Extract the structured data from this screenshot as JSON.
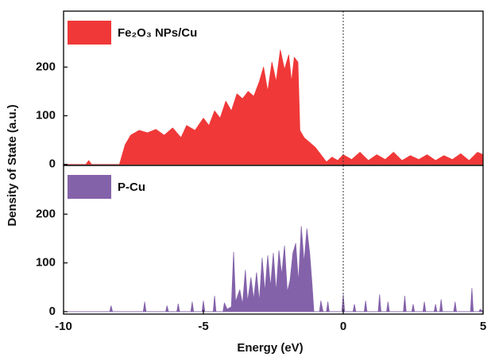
{
  "chart_data": [
    {
      "type": "area",
      "ylabel": "Density of State (a.u.)",
      "xlim": [
        -10,
        5
      ],
      "ylim": [
        -2,
        315
      ],
      "yticks": [
        0,
        100,
        200
      ],
      "vline": 0,
      "x": [
        -10,
        -9.2,
        -9.1,
        -9.0,
        -8.0,
        -7.8,
        -7.6,
        -7.3,
        -7.0,
        -6.7,
        -6.4,
        -6.1,
        -5.8,
        -5.6,
        -5.3,
        -5.0,
        -4.8,
        -4.6,
        -4.4,
        -4.2,
        -4.0,
        -3.8,
        -3.6,
        -3.4,
        -3.2,
        -3.0,
        -2.85,
        -2.7,
        -2.55,
        -2.4,
        -2.25,
        -2.1,
        -1.95,
        -1.85,
        -1.75,
        -1.62,
        -1.55,
        -1.4,
        -1.2,
        -1.0,
        -0.8,
        -0.6,
        -0.4,
        -0.2,
        0,
        0.3,
        0.6,
        0.9,
        1.2,
        1.5,
        1.8,
        2.1,
        2.4,
        2.7,
        3.0,
        3.3,
        3.6,
        3.9,
        4.2,
        4.5,
        4.8,
        5
      ],
      "series": [
        {
          "name": "Fe₂O₃ NPs/Cu",
          "color": "#f03838",
          "values": [
            0,
            0,
            8,
            0,
            0,
            40,
            60,
            70,
            65,
            72,
            60,
            75,
            55,
            80,
            70,
            95,
            80,
            110,
            95,
            130,
            110,
            145,
            135,
            150,
            140,
            170,
            200,
            150,
            210,
            170,
            235,
            195,
            225,
            170,
            220,
            210,
            70,
            55,
            45,
            35,
            20,
            5,
            15,
            8,
            20,
            10,
            25,
            8,
            20,
            10,
            25,
            8,
            18,
            10,
            20,
            8,
            18,
            10,
            22,
            8,
            25,
            20
          ]
        }
      ]
    },
    {
      "type": "area",
      "xlabel": "Energy (eV)",
      "xlim": [
        -10,
        5
      ],
      "xticks": [
        -10,
        -5,
        0,
        5
      ],
      "ylim": [
        -5,
        300
      ],
      "yticks": [
        0,
        100,
        200
      ],
      "vline": 0,
      "x": [
        -10,
        -8.35,
        -8.3,
        -8.25,
        -7.15,
        -7.1,
        -7.05,
        -6.35,
        -6.3,
        -6.25,
        -5.95,
        -5.9,
        -5.85,
        -5.45,
        -5.4,
        -5.35,
        -5.05,
        -5.0,
        -4.95,
        -4.65,
        -4.6,
        -4.55,
        -4.3,
        -4.25,
        -4.15,
        -4.0,
        -3.92,
        -3.85,
        -3.7,
        -3.6,
        -3.5,
        -3.42,
        -3.3,
        -3.2,
        -3.1,
        -3.0,
        -2.9,
        -2.8,
        -2.7,
        -2.6,
        -2.5,
        -2.4,
        -2.3,
        -2.2,
        -2.1,
        -2.0,
        -1.9,
        -1.8,
        -1.7,
        -1.6,
        -1.5,
        -1.4,
        -1.3,
        -1.2,
        -1.12,
        -1.05,
        -0.85,
        -0.8,
        -0.72,
        -0.6,
        -0.55,
        -0.5,
        -0.05,
        0,
        0.05,
        0.35,
        0.4,
        0.45,
        0.75,
        0.8,
        0.85,
        1.25,
        1.3,
        1.35,
        1.55,
        1.6,
        1.65,
        2.15,
        2.2,
        2.25,
        2.45,
        2.5,
        2.55,
        2.85,
        2.9,
        2.95,
        3.25,
        3.3,
        3.35,
        3.45,
        3.5,
        3.55,
        3.95,
        4.0,
        4.05,
        4.55,
        4.6,
        4.65,
        4.85,
        4.9,
        5
      ],
      "series": [
        {
          "name": "P-Cu",
          "color": "#8462aa",
          "values": [
            0,
            0,
            12,
            0,
            0,
            20,
            0,
            0,
            12,
            0,
            0,
            16,
            0,
            0,
            20,
            0,
            0,
            22,
            0,
            0,
            32,
            0,
            0,
            18,
            5,
            10,
            122,
            20,
            45,
            15,
            85,
            20,
            70,
            25,
            80,
            20,
            110,
            40,
            115,
            50,
            120,
            40,
            125,
            75,
            135,
            40,
            65,
            120,
            140,
            60,
            175,
            100,
            170,
            120,
            60,
            0,
            0,
            22,
            0,
            0,
            20,
            0,
            0,
            35,
            0,
            0,
            15,
            0,
            0,
            22,
            0,
            0,
            35,
            0,
            0,
            20,
            0,
            0,
            32,
            0,
            0,
            15,
            0,
            0,
            20,
            0,
            0,
            15,
            0,
            0,
            25,
            0,
            0,
            20,
            0,
            0,
            48,
            0,
            0,
            5,
            0
          ]
        }
      ]
    }
  ]
}
